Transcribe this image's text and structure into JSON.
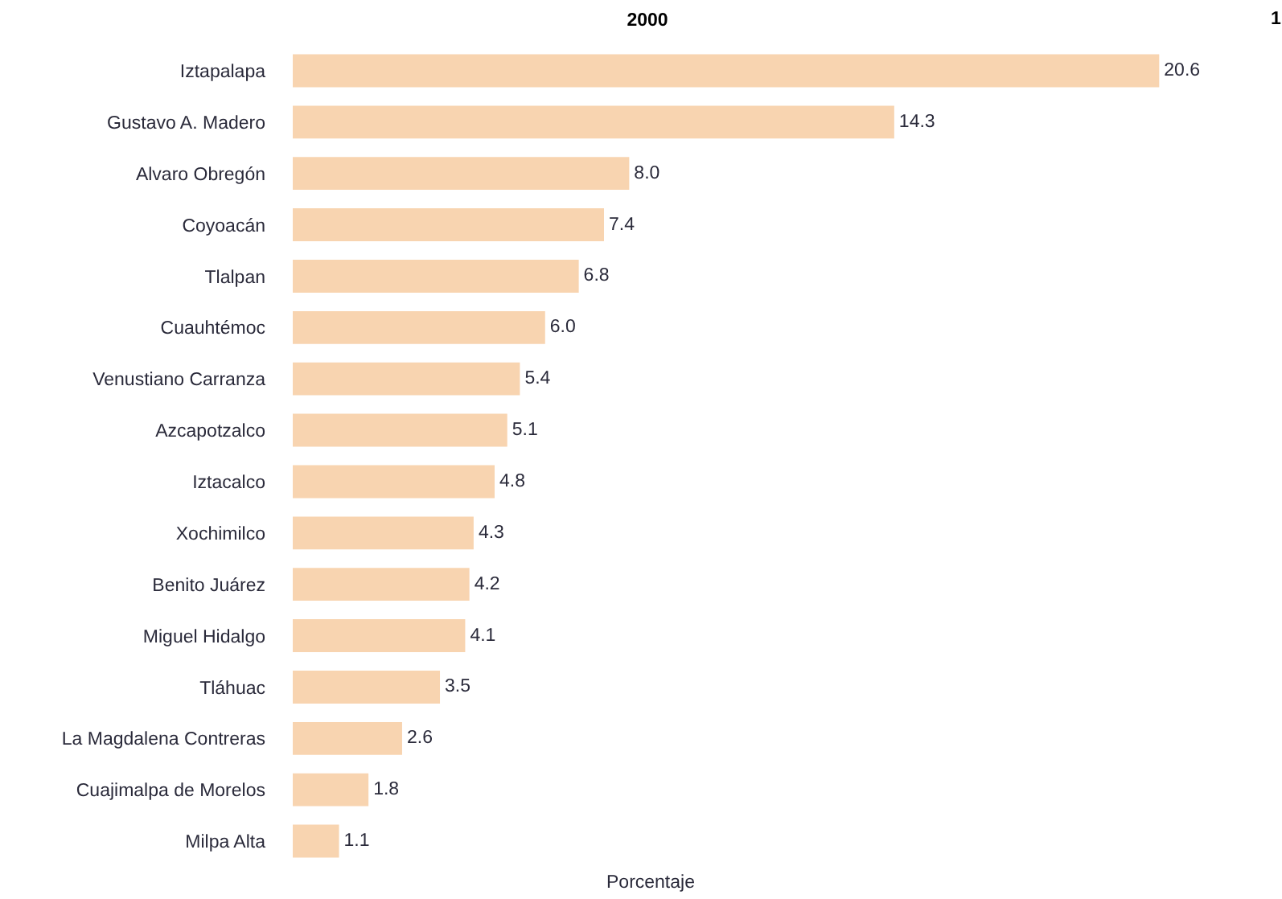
{
  "chart_data": {
    "type": "bar",
    "orientation": "horizontal",
    "title": "2000",
    "xlabel": "Porcentaje",
    "categories": [
      "Iztapalapa",
      "Gustavo A. Madero",
      "Alvaro Obregón",
      "Coyoacán",
      "Tlalpan",
      "Cuauhtémoc",
      "Venustiano Carranza",
      "Azcapotzalco",
      "Iztacalco",
      "Xochimilco",
      "Benito Juárez",
      "Miguel Hidalgo",
      "Tláhuac",
      "La Magdalena Contreras",
      "Cuajimalpa de Morelos",
      "Milpa Alta"
    ],
    "values": [
      20.6,
      14.3,
      8.0,
      7.4,
      6.8,
      6.0,
      5.4,
      5.1,
      4.8,
      4.3,
      4.2,
      4.1,
      3.5,
      2.6,
      1.8,
      1.1
    ],
    "value_labels": [
      "20.6",
      "14.3",
      "8.0",
      "7.4",
      "6.8",
      "6.0",
      "5.4",
      "5.1",
      "4.8",
      "4.3",
      "4.2",
      "4.1",
      "3.5",
      "2.6",
      "1.8",
      "1.1"
    ],
    "color": "#f8d4b0",
    "grid": false,
    "tick_labels": "y",
    "annotations": [
      "1"
    ]
  }
}
